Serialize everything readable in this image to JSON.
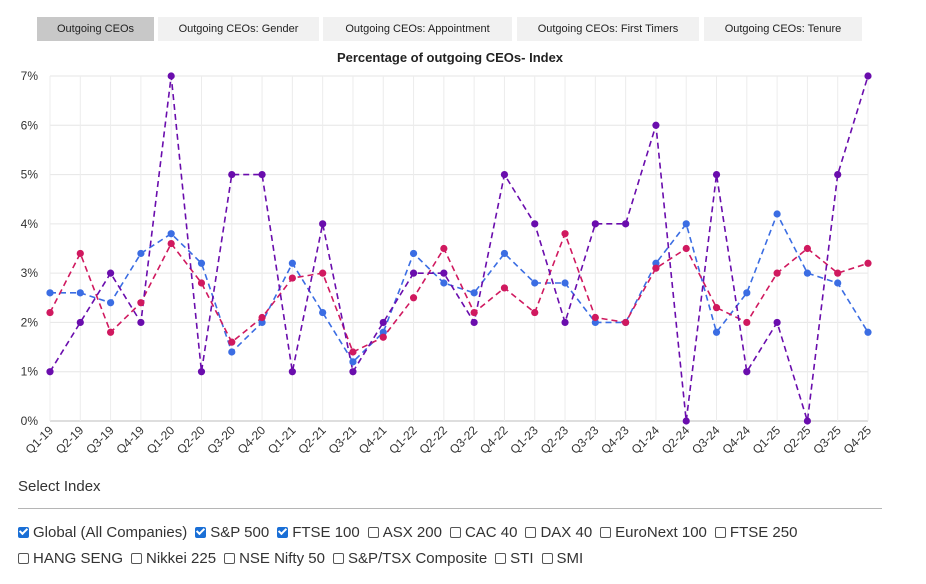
{
  "tabs": [
    {
      "label": "Outgoing CEOs",
      "active": true
    },
    {
      "label": "Outgoing CEOs: Gender",
      "active": false
    },
    {
      "label": "Outgoing CEOs: Appointment",
      "active": false
    },
    {
      "label": "Outgoing CEOs: First Timers",
      "active": false
    },
    {
      "label": "Outgoing CEOs: Tenure",
      "active": false
    }
  ],
  "chart_data": {
    "type": "line",
    "title": "Percentage of outgoing CEOs- Index",
    "xlabel": "",
    "ylabel": "",
    "ylim": [
      0,
      7
    ],
    "yticks": [
      "0%",
      "1%",
      "2%",
      "3%",
      "4%",
      "5%",
      "6%",
      "7%"
    ],
    "categories": [
      "Q1-19",
      "Q2-19",
      "Q3-19",
      "Q4-19",
      "Q1-20",
      "Q2-20",
      "Q3-20",
      "Q4-20",
      "Q1-21",
      "Q2-21",
      "Q3-21",
      "Q4-21",
      "Q1-22",
      "Q2-22",
      "Q3-22",
      "Q4-22",
      "Q1-23",
      "Q2-23",
      "Q3-23",
      "Q4-23",
      "Q1-24",
      "Q2-24",
      "Q3-24",
      "Q4-24",
      "Q1-25",
      "Q2-25",
      "Q3-25",
      "Q4-25"
    ],
    "series": [
      {
        "name": "Global (All Companies)",
        "color": "#3b6de3",
        "values": [
          2.6,
          2.6,
          2.4,
          3.4,
          3.8,
          3.2,
          1.4,
          2.0,
          3.2,
          2.2,
          1.2,
          1.8,
          3.4,
          2.8,
          2.6,
          3.4,
          2.8,
          2.8,
          2.0,
          2.0,
          3.2,
          4.0,
          1.8,
          2.6,
          4.2,
          3.0,
          2.8,
          1.8
        ]
      },
      {
        "name": "S&P 500",
        "color": "#d0195f",
        "values": [
          2.2,
          3.4,
          1.8,
          2.4,
          3.6,
          2.8,
          1.6,
          2.1,
          2.9,
          3.0,
          1.4,
          1.7,
          2.5,
          3.5,
          2.2,
          2.7,
          2.2,
          3.8,
          2.1,
          2.0,
          3.1,
          3.5,
          2.3,
          2.0,
          3.0,
          3.5,
          3.0,
          3.2
        ]
      },
      {
        "name": "FTSE 100",
        "color": "#6a0dad",
        "values": [
          1,
          2,
          3,
          2,
          7,
          1,
          5,
          5,
          1,
          4,
          1,
          2,
          3,
          3,
          2,
          5,
          4,
          2,
          4,
          4,
          6,
          0,
          5,
          1,
          2,
          0,
          5,
          7
        ]
      }
    ]
  },
  "select_index": {
    "title": "Select Index",
    "rows": [
      [
        {
          "label": "Global (All Companies)",
          "checked": true
        },
        {
          "label": "S&P 500",
          "checked": true
        },
        {
          "label": "FTSE 100",
          "checked": true
        },
        {
          "label": "ASX 200",
          "checked": false
        },
        {
          "label": "CAC 40",
          "checked": false
        },
        {
          "label": "DAX 40",
          "checked": false
        },
        {
          "label": "EuroNext 100",
          "checked": false
        },
        {
          "label": "FTSE 250",
          "checked": false
        }
      ],
      [
        {
          "label": "HANG SENG",
          "checked": false
        },
        {
          "label": "Nikkei 225",
          "checked": false
        },
        {
          "label": "NSE Nifty 50",
          "checked": false
        },
        {
          "label": "S&P/TSX Composite",
          "checked": false
        },
        {
          "label": "STI",
          "checked": false
        },
        {
          "label": "SMI",
          "checked": false
        }
      ]
    ]
  }
}
